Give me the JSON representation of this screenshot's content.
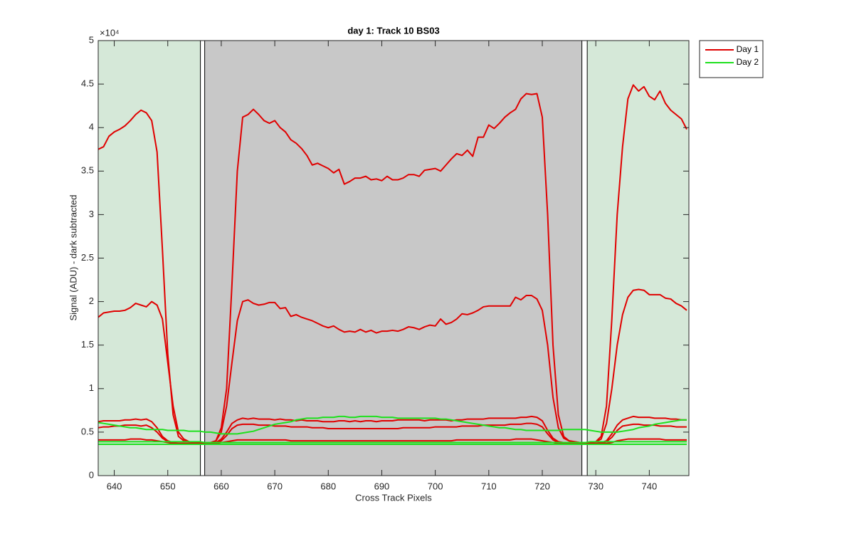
{
  "chart_data": {
    "type": "line",
    "title": "day 1: Track 10  BS03",
    "x_label": "Cross Track Pixels",
    "y_label": "Signal (ADU) - dark subtracted",
    "y_exponent": "×10⁴",
    "xlim": [
      637,
      747.4
    ],
    "ylim": [
      0,
      5
    ],
    "xticks": [
      640,
      650,
      660,
      670,
      680,
      690,
      700,
      710,
      720,
      730,
      740
    ],
    "yticks": [
      0,
      0.5,
      1,
      1.5,
      2,
      2.5,
      3,
      3.5,
      4,
      4.5,
      5
    ],
    "legend_position": "northeastoutside",
    "regions": [
      {
        "x": [
          637,
          656.2
        ],
        "color": "#d5e8d8"
      },
      {
        "x": [
          656.9,
          727.5
        ],
        "color": "#c8c8c8"
      },
      {
        "x": [
          728.4,
          747.4
        ],
        "color": "#d5e8d8"
      },
      {
        "x": [
          656.1,
          656.9
        ],
        "color": "#ffffff"
      },
      {
        "x": [
          727.4,
          728.4
        ],
        "color": "#ffffff"
      }
    ],
    "x": [
      637,
      638,
      639,
      640,
      641,
      642,
      643,
      644,
      645,
      646,
      647,
      648,
      649,
      650,
      651,
      652,
      653,
      654,
      655,
      656,
      657,
      658,
      659,
      660,
      661,
      662,
      663,
      664,
      665,
      666,
      667,
      668,
      669,
      670,
      671,
      672,
      673,
      674,
      675,
      676,
      677,
      678,
      679,
      680,
      681,
      682,
      683,
      684,
      685,
      686,
      687,
      688,
      689,
      690,
      691,
      692,
      693,
      694,
      695,
      696,
      697,
      698,
      699,
      700,
      701,
      702,
      703,
      704,
      705,
      706,
      707,
      708,
      709,
      710,
      711,
      712,
      713,
      714,
      715,
      716,
      717,
      718,
      719,
      720,
      721,
      722,
      723,
      724,
      725,
      726,
      727,
      728,
      729,
      730,
      731,
      732,
      733,
      734,
      735,
      736,
      737,
      738,
      739,
      740,
      741,
      742,
      743,
      744,
      745,
      746,
      747
    ],
    "series": [
      {
        "name": "Day 1",
        "color": "#e00000",
        "values": [
          [
            3.75,
            3.78,
            3.9,
            3.95,
            3.98,
            4.02,
            4.08,
            4.15,
            4.2,
            4.17,
            4.08,
            3.72,
            2.6,
            1.4,
            0.7,
            0.45,
            0.4,
            0.39,
            0.38,
            0.38,
            0.38,
            0.38,
            0.4,
            0.55,
            1.0,
            2.2,
            3.5,
            4.12,
            4.15,
            4.21,
            4.15,
            4.08,
            4.05,
            4.08,
            4.0,
            3.95,
            3.86,
            3.82,
            3.76,
            3.68,
            3.57,
            3.59,
            3.56,
            3.53,
            3.48,
            3.52,
            3.35,
            3.38,
            3.42,
            3.42,
            3.44,
            3.4,
            3.41,
            3.39,
            3.44,
            3.4,
            3.4,
            3.42,
            3.46,
            3.46,
            3.44,
            3.51,
            3.52,
            3.53,
            3.5,
            3.57,
            3.64,
            3.7,
            3.68,
            3.74,
            3.67,
            3.89,
            3.89,
            4.03,
            3.99,
            4.05,
            4.12,
            4.17,
            4.21,
            4.33,
            4.39,
            4.38,
            4.39,
            4.12,
            3.0,
            1.5,
            0.7,
            0.45,
            0.4,
            0.39,
            0.38,
            0.38,
            0.38,
            0.39,
            0.45,
            0.8,
            1.8,
            3.0,
            3.78,
            4.33,
            4.49,
            4.42,
            4.47,
            4.36,
            4.32,
            4.42,
            4.28,
            4.2,
            4.15,
            4.1,
            3.98
          ],
          [
            1.82,
            1.87,
            1.88,
            1.89,
            1.89,
            1.9,
            1.93,
            1.98,
            1.96,
            1.94,
            2.0,
            1.96,
            1.8,
            1.3,
            0.8,
            0.5,
            0.42,
            0.39,
            0.38,
            0.38,
            0.38,
            0.38,
            0.4,
            0.5,
            0.8,
            1.3,
            1.78,
            2.0,
            2.02,
            1.98,
            1.96,
            1.97,
            1.99,
            1.99,
            1.92,
            1.93,
            1.83,
            1.85,
            1.82,
            1.8,
            1.78,
            1.75,
            1.72,
            1.7,
            1.72,
            1.68,
            1.65,
            1.66,
            1.65,
            1.68,
            1.65,
            1.67,
            1.64,
            1.66,
            1.66,
            1.67,
            1.66,
            1.68,
            1.71,
            1.7,
            1.68,
            1.71,
            1.73,
            1.72,
            1.8,
            1.74,
            1.76,
            1.8,
            1.86,
            1.85,
            1.87,
            1.9,
            1.94,
            1.95,
            1.95,
            1.95,
            1.95,
            1.95,
            2.05,
            2.02,
            2.07,
            2.07,
            2.03,
            1.9,
            1.5,
            0.9,
            0.55,
            0.43,
            0.4,
            0.39,
            0.38,
            0.38,
            0.38,
            0.39,
            0.42,
            0.6,
            1.0,
            1.5,
            1.85,
            2.05,
            2.13,
            2.14,
            2.13,
            2.08,
            2.08,
            2.08,
            2.04,
            2.03,
            1.98,
            1.95,
            1.9
          ],
          [
            0.62,
            0.63,
            0.63,
            0.63,
            0.63,
            0.64,
            0.64,
            0.65,
            0.64,
            0.65,
            0.62,
            0.55,
            0.45,
            0.4,
            0.38,
            0.37,
            0.37,
            0.37,
            0.37,
            0.37,
            0.37,
            0.37,
            0.38,
            0.42,
            0.5,
            0.6,
            0.64,
            0.66,
            0.65,
            0.66,
            0.65,
            0.65,
            0.65,
            0.64,
            0.65,
            0.64,
            0.64,
            0.63,
            0.64,
            0.63,
            0.63,
            0.63,
            0.62,
            0.62,
            0.62,
            0.63,
            0.63,
            0.62,
            0.63,
            0.62,
            0.63,
            0.63,
            0.62,
            0.63,
            0.63,
            0.63,
            0.64,
            0.64,
            0.64,
            0.64,
            0.64,
            0.63,
            0.64,
            0.64,
            0.64,
            0.64,
            0.63,
            0.64,
            0.64,
            0.65,
            0.65,
            0.65,
            0.65,
            0.66,
            0.66,
            0.66,
            0.66,
            0.66,
            0.66,
            0.67,
            0.67,
            0.68,
            0.67,
            0.63,
            0.52,
            0.43,
            0.39,
            0.38,
            0.37,
            0.37,
            0.37,
            0.37,
            0.37,
            0.37,
            0.38,
            0.4,
            0.48,
            0.58,
            0.64,
            0.66,
            0.68,
            0.67,
            0.67,
            0.67,
            0.66,
            0.66,
            0.66,
            0.65,
            0.65,
            0.64,
            0.64
          ],
          [
            0.55,
            0.56,
            0.56,
            0.57,
            0.57,
            0.58,
            0.58,
            0.58,
            0.57,
            0.58,
            0.55,
            0.5,
            0.43,
            0.39,
            0.38,
            0.37,
            0.37,
            0.37,
            0.37,
            0.37,
            0.37,
            0.37,
            0.38,
            0.4,
            0.46,
            0.54,
            0.58,
            0.59,
            0.59,
            0.59,
            0.58,
            0.58,
            0.58,
            0.57,
            0.57,
            0.57,
            0.56,
            0.56,
            0.56,
            0.56,
            0.55,
            0.55,
            0.55,
            0.54,
            0.54,
            0.54,
            0.54,
            0.54,
            0.54,
            0.54,
            0.54,
            0.54,
            0.54,
            0.54,
            0.54,
            0.54,
            0.54,
            0.55,
            0.55,
            0.55,
            0.55,
            0.55,
            0.55,
            0.56,
            0.56,
            0.56,
            0.56,
            0.56,
            0.57,
            0.57,
            0.57,
            0.57,
            0.58,
            0.58,
            0.58,
            0.58,
            0.58,
            0.59,
            0.59,
            0.59,
            0.6,
            0.6,
            0.59,
            0.56,
            0.48,
            0.41,
            0.38,
            0.37,
            0.37,
            0.37,
            0.37,
            0.37,
            0.37,
            0.37,
            0.37,
            0.39,
            0.44,
            0.52,
            0.57,
            0.58,
            0.59,
            0.59,
            0.58,
            0.58,
            0.58,
            0.57,
            0.57,
            0.57,
            0.56,
            0.56,
            0.56
          ],
          [
            0.41,
            0.41,
            0.41,
            0.41,
            0.41,
            0.41,
            0.42,
            0.42,
            0.42,
            0.41,
            0.41,
            0.4,
            0.39,
            0.38,
            0.37,
            0.37,
            0.37,
            0.37,
            0.37,
            0.37,
            0.37,
            0.37,
            0.37,
            0.38,
            0.39,
            0.4,
            0.41,
            0.41,
            0.41,
            0.41,
            0.41,
            0.41,
            0.41,
            0.41,
            0.41,
            0.41,
            0.4,
            0.4,
            0.4,
            0.4,
            0.4,
            0.4,
            0.4,
            0.4,
            0.4,
            0.4,
            0.4,
            0.4,
            0.4,
            0.4,
            0.4,
            0.4,
            0.4,
            0.4,
            0.4,
            0.4,
            0.4,
            0.4,
            0.4,
            0.4,
            0.4,
            0.4,
            0.4,
            0.4,
            0.4,
            0.4,
            0.4,
            0.41,
            0.41,
            0.41,
            0.41,
            0.41,
            0.41,
            0.41,
            0.41,
            0.41,
            0.41,
            0.41,
            0.42,
            0.42,
            0.42,
            0.42,
            0.41,
            0.4,
            0.39,
            0.38,
            0.37,
            0.37,
            0.37,
            0.37,
            0.37,
            0.37,
            0.37,
            0.37,
            0.37,
            0.37,
            0.38,
            0.4,
            0.41,
            0.42,
            0.42,
            0.42,
            0.42,
            0.42,
            0.42,
            0.42,
            0.41,
            0.41,
            0.41,
            0.41,
            0.41
          ]
        ]
      },
      {
        "name": "Day 2",
        "color": "#1ee01e",
        "values": [
          [
            0.61,
            0.6,
            0.59,
            0.58,
            0.57,
            0.56,
            0.55,
            0.55,
            0.54,
            0.53,
            0.53,
            0.53,
            0.53,
            0.52,
            0.52,
            0.52,
            0.52,
            0.51,
            0.51,
            0.51,
            0.5,
            0.5,
            0.49,
            0.48,
            0.48,
            0.48,
            0.48,
            0.49,
            0.5,
            0.51,
            0.53,
            0.55,
            0.57,
            0.59,
            0.6,
            0.61,
            0.62,
            0.64,
            0.65,
            0.66,
            0.66,
            0.66,
            0.67,
            0.67,
            0.67,
            0.68,
            0.68,
            0.67,
            0.67,
            0.68,
            0.68,
            0.68,
            0.68,
            0.67,
            0.67,
            0.67,
            0.66,
            0.66,
            0.66,
            0.66,
            0.66,
            0.66,
            0.66,
            0.66,
            0.65,
            0.65,
            0.64,
            0.63,
            0.62,
            0.61,
            0.6,
            0.59,
            0.58,
            0.57,
            0.56,
            0.55,
            0.55,
            0.54,
            0.53,
            0.53,
            0.52,
            0.52,
            0.52,
            0.52,
            0.52,
            0.52,
            0.52,
            0.53,
            0.53,
            0.53,
            0.53,
            0.53,
            0.52,
            0.51,
            0.5,
            0.5,
            0.5,
            0.5,
            0.51,
            0.52,
            0.53,
            0.55,
            0.56,
            0.57,
            0.59,
            0.6,
            0.61,
            0.62,
            0.63,
            0.64,
            0.64
          ],
          [
            0.39,
            0.39,
            0.39,
            0.39,
            0.39,
            0.39,
            0.39,
            0.39,
            0.39,
            0.39,
            0.39,
            0.39,
            0.39,
            0.39,
            0.39,
            0.39,
            0.39,
            0.39,
            0.39,
            0.39,
            0.38,
            0.38,
            0.38,
            0.38,
            0.38,
            0.38,
            0.38,
            0.38,
            0.38,
            0.38,
            0.38,
            0.38,
            0.38,
            0.38,
            0.38,
            0.38,
            0.38,
            0.38,
            0.38,
            0.38,
            0.38,
            0.38,
            0.38,
            0.38,
            0.38,
            0.38,
            0.38,
            0.38,
            0.38,
            0.38,
            0.38,
            0.38,
            0.38,
            0.38,
            0.38,
            0.38,
            0.38,
            0.38,
            0.38,
            0.38,
            0.38,
            0.38,
            0.38,
            0.38,
            0.38,
            0.38,
            0.38,
            0.38,
            0.38,
            0.38,
            0.38,
            0.38,
            0.38,
            0.38,
            0.38,
            0.38,
            0.38,
            0.38,
            0.38,
            0.38,
            0.38,
            0.38,
            0.38,
            0.38,
            0.38,
            0.38,
            0.38,
            0.38,
            0.38,
            0.38,
            0.38,
            0.38,
            0.39,
            0.39,
            0.39,
            0.39,
            0.39,
            0.39,
            0.39,
            0.39,
            0.39,
            0.39,
            0.39,
            0.39,
            0.39,
            0.39,
            0.39,
            0.39,
            0.39,
            0.39,
            0.39
          ],
          [
            0.36,
            0.36,
            0.36,
            0.36,
            0.36,
            0.36,
            0.36,
            0.36,
            0.36,
            0.36,
            0.36,
            0.36,
            0.36,
            0.36,
            0.36,
            0.36,
            0.36,
            0.36,
            0.36,
            0.36,
            0.36,
            0.36,
            0.36,
            0.36,
            0.36,
            0.36,
            0.36,
            0.36,
            0.36,
            0.36,
            0.36,
            0.36,
            0.36,
            0.36,
            0.36,
            0.36,
            0.36,
            0.36,
            0.36,
            0.36,
            0.36,
            0.36,
            0.36,
            0.36,
            0.36,
            0.36,
            0.36,
            0.36,
            0.36,
            0.36,
            0.36,
            0.36,
            0.36,
            0.36,
            0.36,
            0.36,
            0.36,
            0.36,
            0.36,
            0.36,
            0.36,
            0.36,
            0.36,
            0.36,
            0.36,
            0.36,
            0.36,
            0.36,
            0.36,
            0.36,
            0.36,
            0.36,
            0.36,
            0.36,
            0.36,
            0.36,
            0.36,
            0.36,
            0.36,
            0.36,
            0.36,
            0.36,
            0.36,
            0.36,
            0.36,
            0.36,
            0.36,
            0.36,
            0.36,
            0.36,
            0.36,
            0.36,
            0.36,
            0.36,
            0.36,
            0.36,
            0.36,
            0.36,
            0.36,
            0.36,
            0.36,
            0.36,
            0.36,
            0.36,
            0.36,
            0.36,
            0.36,
            0.36,
            0.36,
            0.36,
            0.36
          ]
        ]
      }
    ]
  }
}
